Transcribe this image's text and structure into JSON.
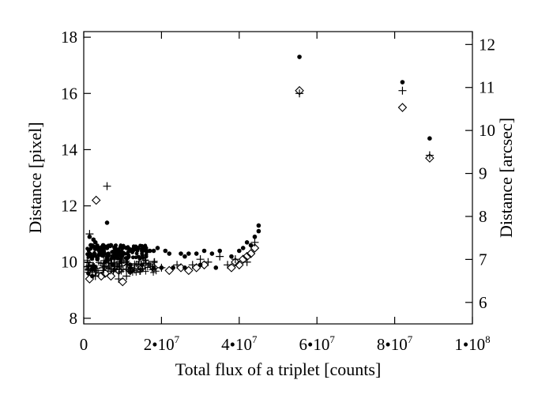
{
  "chart_data": {
    "type": "scatter",
    "title": "",
    "xlabel": "Total flux of a triplet [counts]",
    "ylabel": "Distance [pixel]",
    "y2label": "Distance [arcsec]",
    "xlim": [
      0,
      100000000
    ],
    "ylim": [
      7.8,
      18.2
    ],
    "y2lim": [
      5.5,
      12.3
    ],
    "x_ticks": [
      {
        "value": 0,
        "base": "0",
        "exp": ""
      },
      {
        "value": 20000000,
        "base": "2•10",
        "exp": "7"
      },
      {
        "value": 40000000,
        "base": "4•10",
        "exp": "7"
      },
      {
        "value": 60000000,
        "base": "6•10",
        "exp": "7"
      },
      {
        "value": 80000000,
        "base": "8•10",
        "exp": "7"
      },
      {
        "value": 100000000,
        "base": "1•10",
        "exp": "8"
      }
    ],
    "y_ticks": [
      8,
      10,
      12,
      14,
      16,
      18
    ],
    "y2_ticks": [
      6,
      7,
      8,
      9,
      10,
      11,
      12
    ],
    "grid": false,
    "legend": "none",
    "series": [
      {
        "marker": "dot",
        "points": [
          [
            1500000,
            10.9
          ],
          [
            2500000,
            10.8
          ],
          [
            1800000,
            10.6
          ],
          [
            3000000,
            10.7
          ],
          [
            4000000,
            10.5
          ],
          [
            5000000,
            10.6
          ],
          [
            6000000,
            10.5
          ],
          [
            7000000,
            10.6
          ],
          [
            8000000,
            10.5
          ],
          [
            9000000,
            10.4
          ],
          [
            10000000,
            10.5
          ],
          [
            11000000,
            10.5
          ],
          [
            12000000,
            10.4
          ],
          [
            13000000,
            10.5
          ],
          [
            14000000,
            10.5
          ],
          [
            15000000,
            10.4
          ],
          [
            16000000,
            10.5
          ],
          [
            17000000,
            10.4
          ],
          [
            18000000,
            10.4
          ],
          [
            19000000,
            10.5
          ],
          [
            21000000,
            10.4
          ],
          [
            22000000,
            10.3
          ],
          [
            25000000,
            10.3
          ],
          [
            26000000,
            10.2
          ],
          [
            27000000,
            10.3
          ],
          [
            29000000,
            10.3
          ],
          [
            31000000,
            10.4
          ],
          [
            33000000,
            10.3
          ],
          [
            35000000,
            10.4
          ],
          [
            38000000,
            10.2
          ],
          [
            40000000,
            10.4
          ],
          [
            41000000,
            10.5
          ],
          [
            42000000,
            10.7
          ],
          [
            43000000,
            10.6
          ],
          [
            44000000,
            10.9
          ],
          [
            45000000,
            11.1
          ],
          [
            45000000,
            11.3
          ],
          [
            2000000,
            10.2
          ],
          [
            3500000,
            10.1
          ],
          [
            5500000,
            10.0
          ],
          [
            6000000,
            11.4
          ],
          [
            7500000,
            9.9
          ],
          [
            9500000,
            10.0
          ],
          [
            12000000,
            9.9
          ],
          [
            15000000,
            9.9
          ],
          [
            18000000,
            9.8
          ],
          [
            20000000,
            9.8
          ],
          [
            23000000,
            9.8
          ],
          [
            26000000,
            9.8
          ],
          [
            30000000,
            9.9
          ],
          [
            34000000,
            9.8
          ],
          [
            1200000,
            9.6
          ],
          [
            2200000,
            9.5
          ],
          [
            55500000,
            17.3
          ],
          [
            82000000,
            16.4
          ],
          [
            89000000,
            14.4
          ]
        ]
      },
      {
        "marker": "plus",
        "points": [
          [
            1500000,
            11.0
          ],
          [
            2500000,
            10.2
          ],
          [
            4000000,
            10.3
          ],
          [
            6000000,
            12.7
          ],
          [
            8000000,
            10.1
          ],
          [
            9000000,
            9.4
          ],
          [
            11000000,
            9.5
          ],
          [
            14000000,
            9.9
          ],
          [
            20000000,
            9.8
          ],
          [
            24000000,
            9.9
          ],
          [
            28000000,
            9.9
          ],
          [
            30000000,
            10.1
          ],
          [
            32000000,
            10.0
          ],
          [
            35000000,
            10.2
          ],
          [
            37000000,
            9.9
          ],
          [
            39000000,
            10.1
          ],
          [
            42000000,
            10.0
          ],
          [
            44000000,
            10.7
          ],
          [
            3000000,
            9.5
          ],
          [
            5000000,
            9.8
          ],
          [
            55500000,
            16.0
          ],
          [
            82000000,
            16.1
          ],
          [
            89000000,
            13.8
          ]
        ]
      },
      {
        "marker": "diamond",
        "points": [
          [
            1500000,
            9.4
          ],
          [
            2200000,
            9.6
          ],
          [
            3200000,
            12.2
          ],
          [
            4500000,
            9.5
          ],
          [
            5500000,
            9.6
          ],
          [
            7000000,
            9.5
          ],
          [
            9000000,
            9.7
          ],
          [
            10000000,
            9.3
          ],
          [
            12000000,
            9.7
          ],
          [
            15000000,
            9.8
          ],
          [
            18000000,
            9.8
          ],
          [
            22000000,
            9.7
          ],
          [
            25000000,
            9.8
          ],
          [
            27000000,
            9.7
          ],
          [
            29000000,
            9.8
          ],
          [
            31000000,
            9.9
          ],
          [
            38000000,
            9.8
          ],
          [
            39000000,
            10.0
          ],
          [
            40000000,
            9.9
          ],
          [
            41000000,
            10.1
          ],
          [
            42000000,
            10.2
          ],
          [
            43000000,
            10.3
          ],
          [
            44000000,
            10.5
          ],
          [
            55500000,
            16.1
          ],
          [
            82000000,
            15.5
          ],
          [
            89000000,
            13.7
          ]
        ]
      }
    ]
  }
}
